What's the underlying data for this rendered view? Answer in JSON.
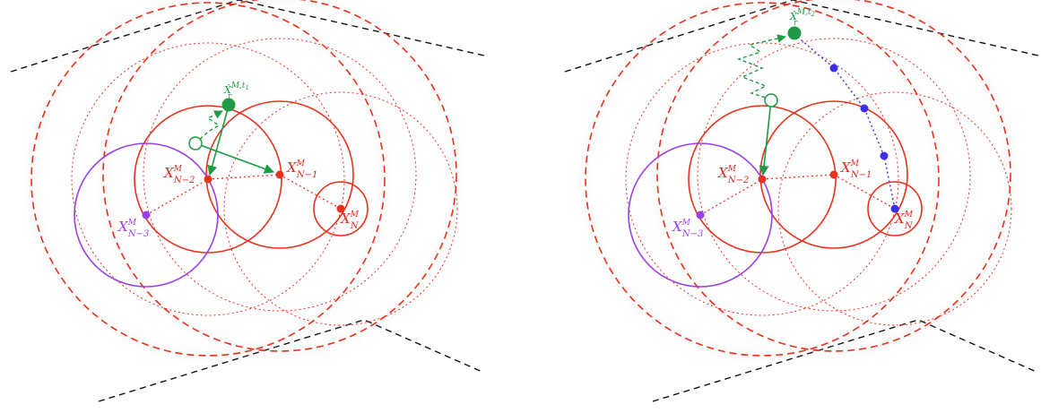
{
  "colors": {
    "red": "#e8321e",
    "purple": "#9b3fe8",
    "green": "#1f9a45",
    "blue": "#3a2ee8",
    "black": "#111111"
  },
  "left_panel": {
    "labels": {
      "xn2": {
        "main": "X",
        "sup": "M",
        "sub": "N−2"
      },
      "xn1": {
        "main": "X",
        "sup": "M",
        "sub": "N−1"
      },
      "xn": {
        "main": "X",
        "sup": "M",
        "sub": "N"
      },
      "xn3": {
        "main": "X",
        "sup": "M",
        "sub": "N−3"
      },
      "xhat": {
        "main": "X̂",
        "sup": "M,t",
        "supsub": "1",
        "sub": "r"
      }
    }
  },
  "right_panel": {
    "labels": {
      "xn2": {
        "main": "X",
        "sup": "M",
        "sub": "N−2"
      },
      "xn1": {
        "main": "X",
        "sup": "M",
        "sub": "N−1"
      },
      "xn": {
        "main": "X",
        "sup": "M",
        "sub": "N"
      },
      "xn3": {
        "main": "X",
        "sup": "M",
        "sub": "N−3"
      },
      "xhat": {
        "main": "X̂",
        "sup": "M,t",
        "supsub": "2",
        "sub": "r"
      }
    }
  }
}
